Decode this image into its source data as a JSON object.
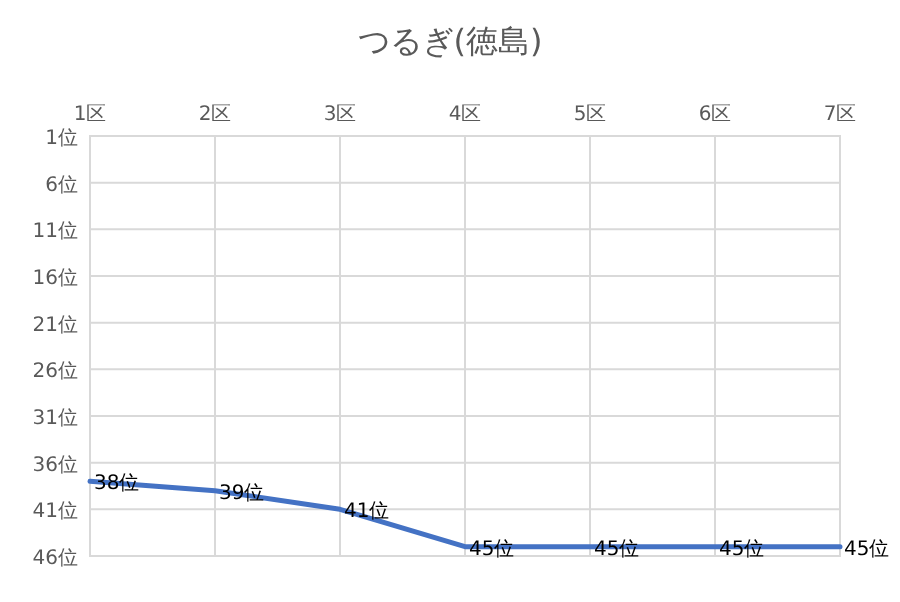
{
  "chart_data": {
    "type": "line",
    "title": "つるぎ(徳島)",
    "categories": [
      "1区",
      "2区",
      "3区",
      "4区",
      "5区",
      "6区",
      "7区"
    ],
    "series": [
      {
        "color": "#4472c4",
        "values": [
          38,
          39,
          41,
          45,
          45,
          45,
          45
        ],
        "value_labels": [
          "38位",
          "39位",
          "41位",
          "45位",
          "45位",
          "45位",
          "45位"
        ]
      }
    ],
    "ylim": [
      46,
      1
    ],
    "yticks": [
      {
        "value": 1,
        "label": "1位"
      },
      {
        "value": 6,
        "label": "6位"
      },
      {
        "value": 11,
        "label": "11位"
      },
      {
        "value": 16,
        "label": "16位"
      },
      {
        "value": 21,
        "label": "21位"
      },
      {
        "value": 26,
        "label": "26位"
      },
      {
        "value": 31,
        "label": "31位"
      },
      {
        "value": 36,
        "label": "36位"
      },
      {
        "value": 41,
        "label": "41位"
      },
      {
        "value": 46,
        "label": "46位"
      }
    ],
    "grid": true,
    "marker": "none",
    "line_style": "solid"
  }
}
